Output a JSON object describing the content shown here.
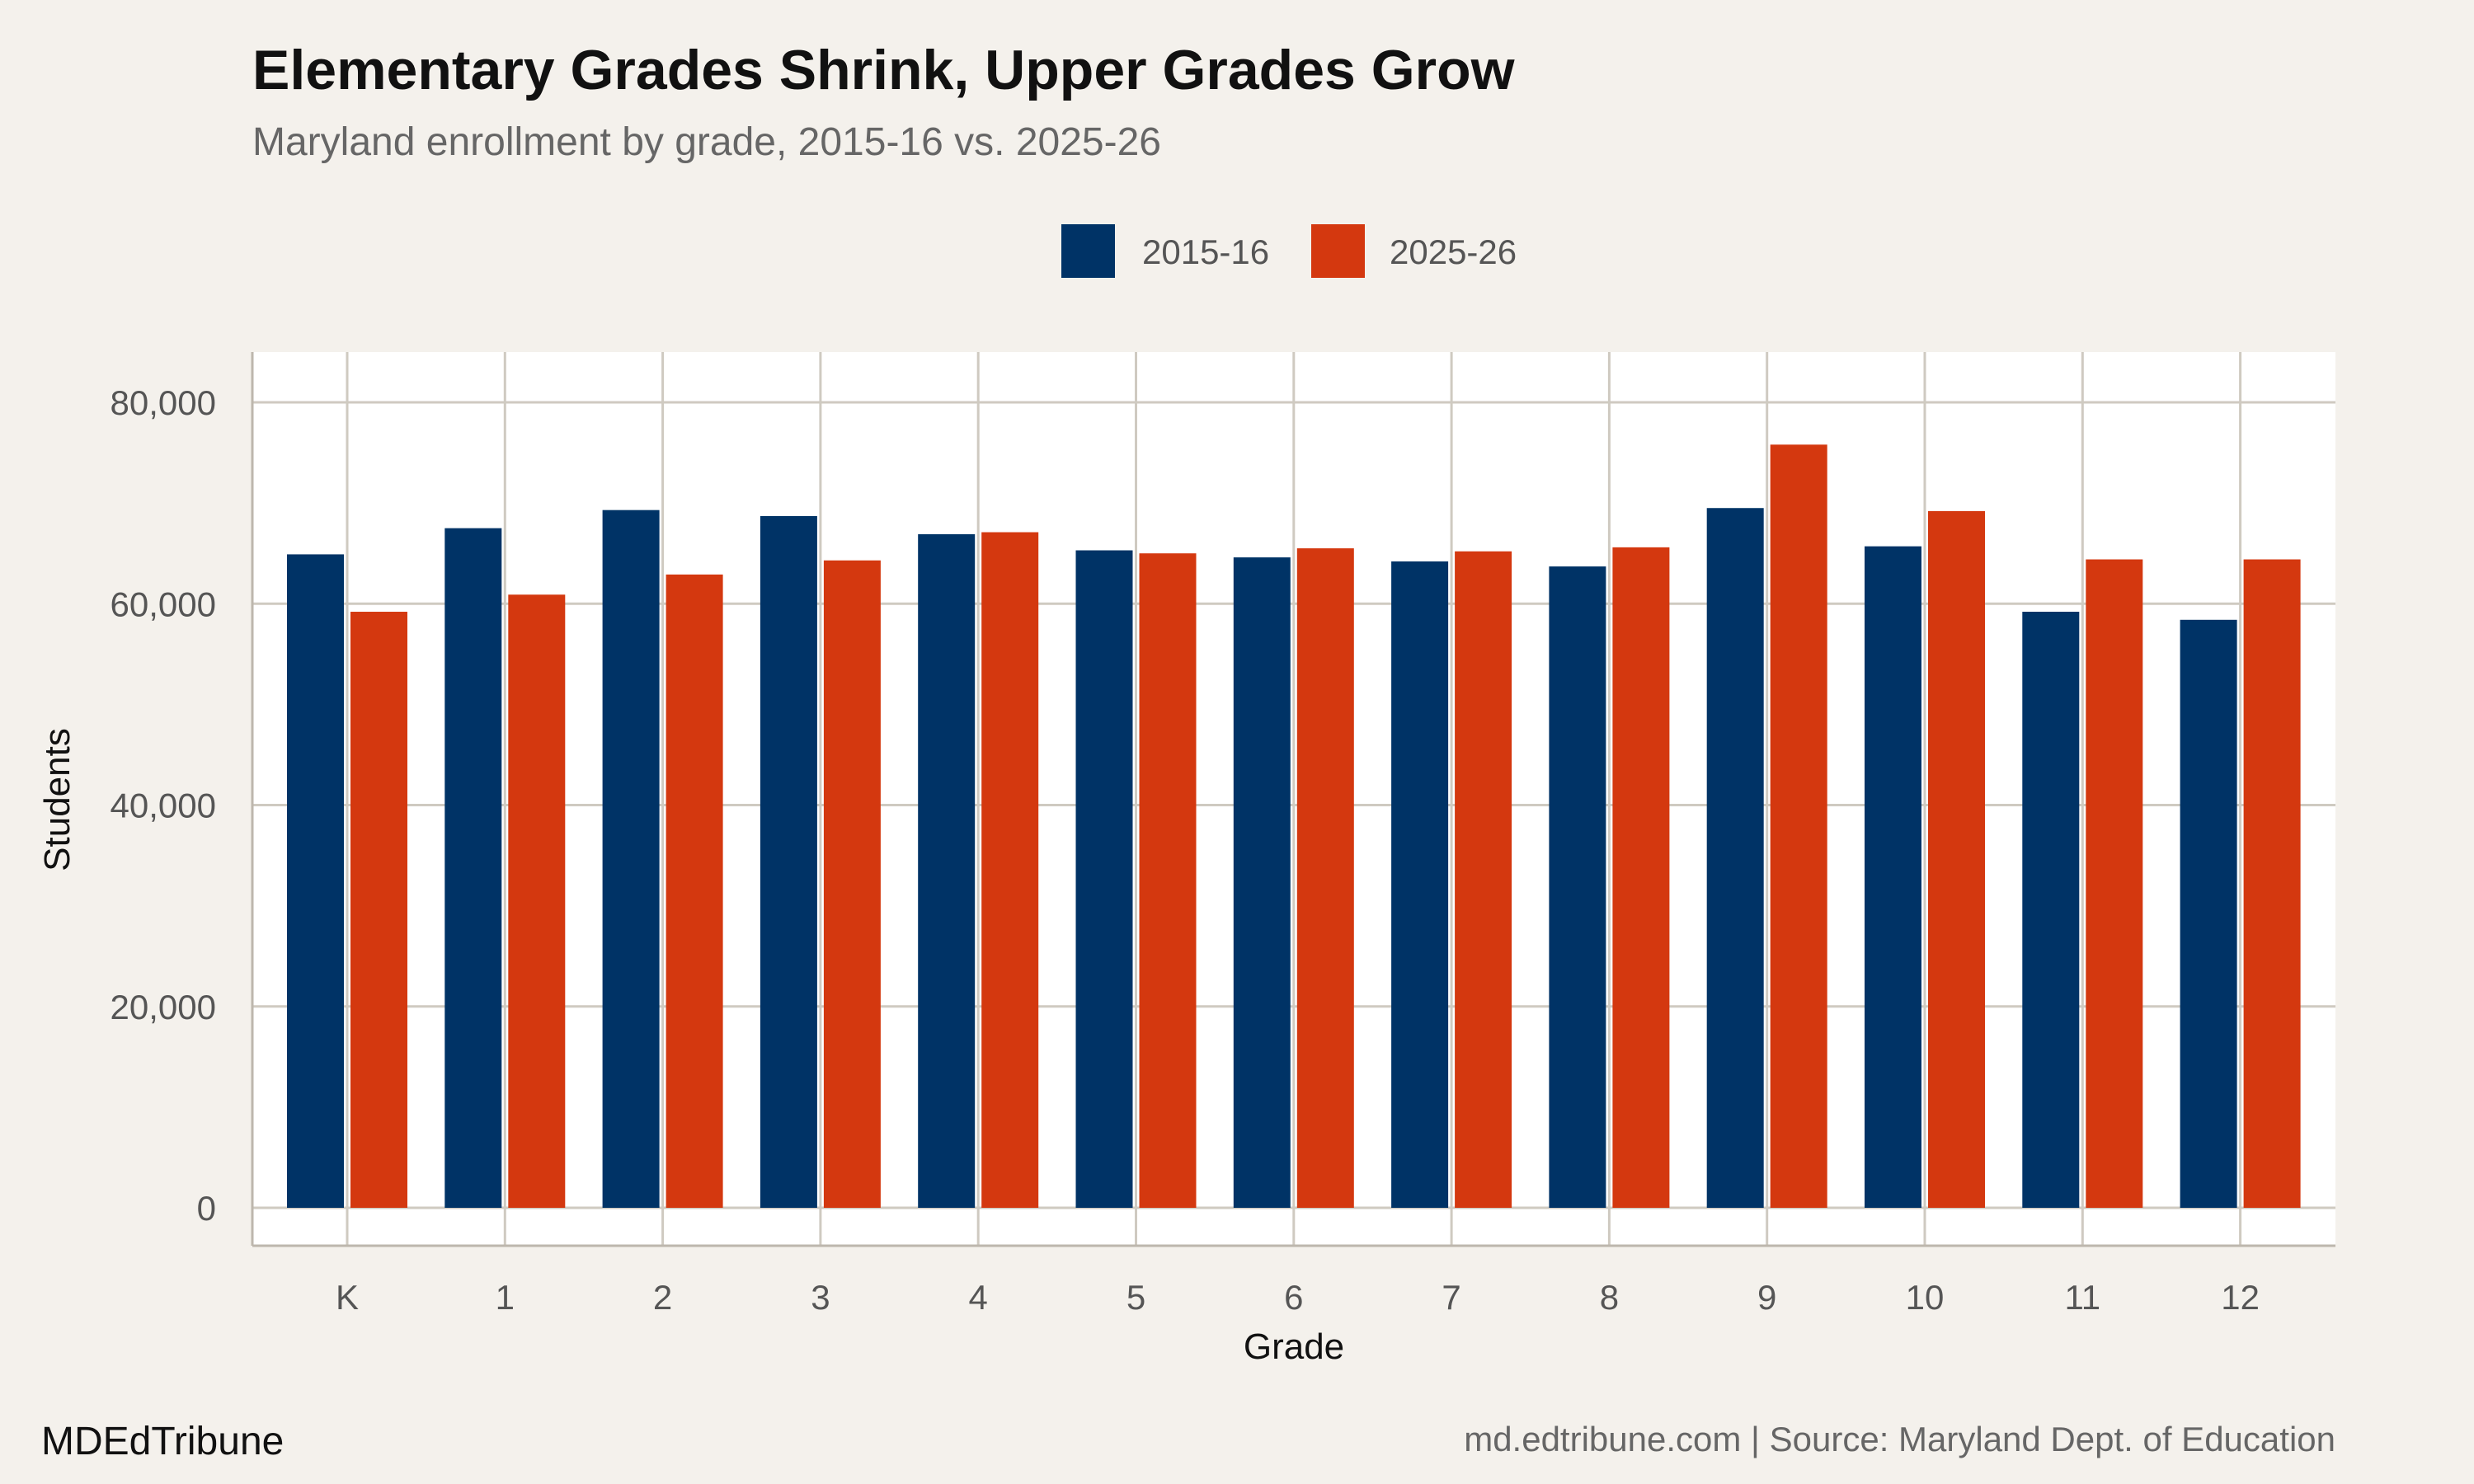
{
  "chart_data": {
    "type": "bar",
    "title": "Elementary Grades Shrink, Upper Grades Grow",
    "subtitle": "Maryland enrollment by grade, 2015-16 vs. 2025-26",
    "xlabel": "Grade",
    "ylabel": "Students",
    "categories": [
      "K",
      "1",
      "2",
      "3",
      "4",
      "5",
      "6",
      "7",
      "8",
      "9",
      "10",
      "11",
      "12"
    ],
    "series": [
      {
        "name": "2015-16",
        "color": "#003366",
        "values": [
          64900,
          67500,
          69300,
          68700,
          66900,
          65300,
          64600,
          64200,
          63700,
          69500,
          65700,
          59200,
          58400
        ]
      },
      {
        "name": "2025-26",
        "color": "#d4380f",
        "values": [
          59200,
          60900,
          62900,
          64300,
          67100,
          65000,
          65500,
          65200,
          65600,
          75800,
          69200,
          64400,
          64400
        ]
      }
    ],
    "ylim": [
      0,
      80000
    ],
    "yticks": [
      0,
      20000,
      40000,
      60000,
      80000
    ],
    "ytick_labels": [
      "0",
      "20,000",
      "40,000",
      "60,000",
      "80,000"
    ],
    "grid": true,
    "legend_position": "top"
  },
  "footer": {
    "brand": "MDEdTribune",
    "source": "md.edtribune.com | Source: Maryland Dept. of Education"
  },
  "colors": {
    "background": "#f4f1ec",
    "panel": "#ffffff",
    "grid": "#cfcac1"
  }
}
